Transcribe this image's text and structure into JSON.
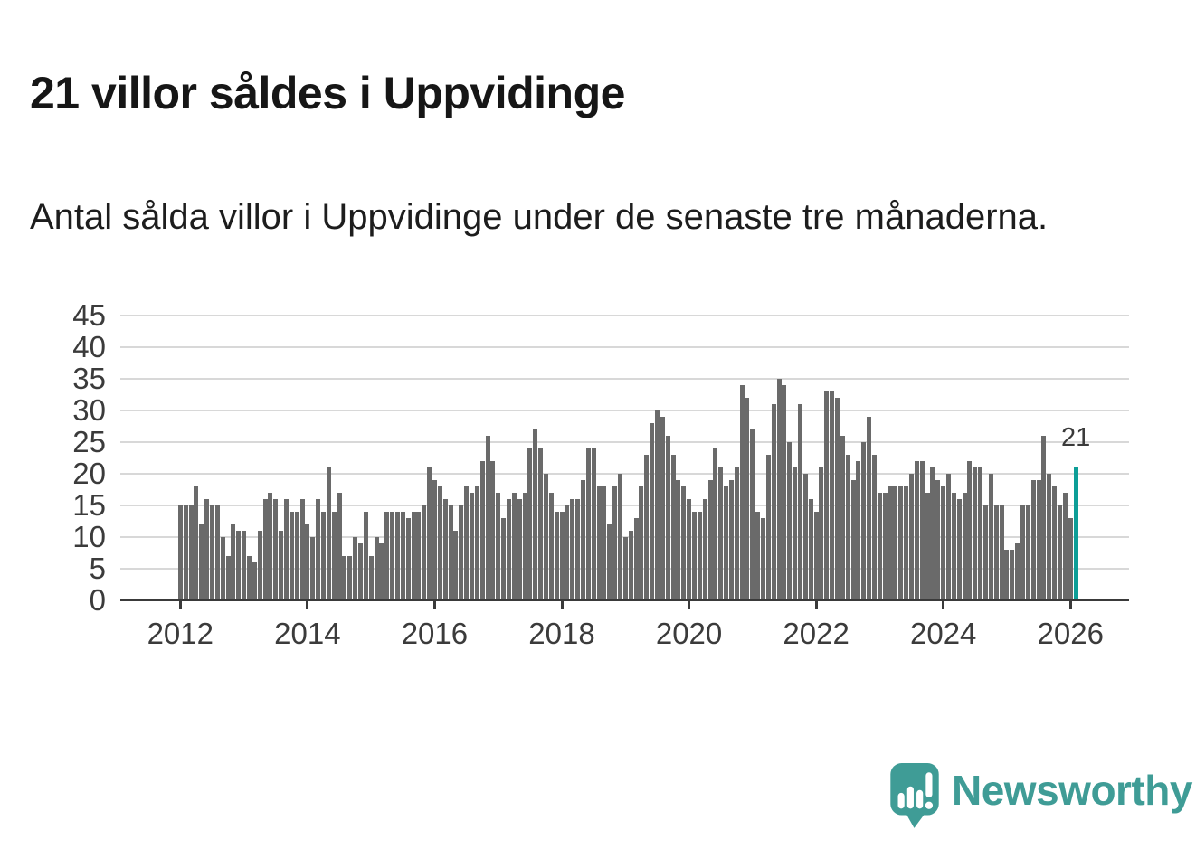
{
  "page": {
    "title": "21 villor såldes i Uppvidinge",
    "subtitle": "Antal sålda villor i Uppvidinge under de senaste tre månaderna."
  },
  "chart_data": {
    "type": "bar",
    "title": "21 villor såldes i Uppvidinge",
    "subtitle": "Antal sålda villor i Uppvidinge under de senaste tre månaderna.",
    "frequency": "monthly",
    "x_start": "2012-01",
    "x_end": "2026-02",
    "values": [
      15,
      15,
      15,
      18,
      12,
      16,
      15,
      15,
      10,
      7,
      12,
      11,
      11,
      7,
      6,
      11,
      16,
      17,
      16,
      11,
      16,
      14,
      14,
      16,
      12,
      10,
      16,
      14,
      21,
      14,
      17,
      7,
      7,
      10,
      9,
      14,
      7,
      10,
      9,
      14,
      14,
      14,
      14,
      13,
      14,
      14,
      15,
      21,
      19,
      18,
      16,
      15,
      11,
      15,
      18,
      17,
      18,
      22,
      26,
      22,
      17,
      13,
      16,
      17,
      16,
      17,
      24,
      27,
      24,
      20,
      17,
      14,
      14,
      15,
      16,
      16,
      19,
      24,
      24,
      18,
      18,
      12,
      18,
      20,
      10,
      11,
      13,
      18,
      23,
      28,
      30,
      29,
      26,
      23,
      19,
      18,
      16,
      14,
      14,
      16,
      19,
      24,
      21,
      18,
      19,
      21,
      34,
      32,
      27,
      14,
      13,
      23,
      31,
      35,
      34,
      25,
      21,
      31,
      20,
      16,
      14,
      21,
      33,
      33,
      32,
      26,
      23,
      19,
      22,
      25,
      29,
      23,
      17,
      17,
      18,
      18,
      18,
      18,
      20,
      22,
      22,
      17,
      21,
      19,
      18,
      20,
      17,
      16,
      17,
      22,
      21,
      21,
      15,
      20,
      15,
      15,
      8,
      8,
      9,
      15,
      15,
      19,
      19,
      26,
      20,
      18,
      15,
      17,
      13,
      21
    ],
    "highlight_last": true,
    "annotation": "21",
    "y_ticks": [
      0,
      5,
      10,
      15,
      20,
      25,
      30,
      35,
      40,
      45
    ],
    "x_ticks": [
      {
        "label": "2012",
        "year": 2012
      },
      {
        "label": "2014",
        "year": 2014
      },
      {
        "label": "2016",
        "year": 2016
      },
      {
        "label": "2018",
        "year": 2018
      },
      {
        "label": "2020",
        "year": 2020
      },
      {
        "label": "2022",
        "year": 2022
      },
      {
        "label": "2024",
        "year": 2024
      },
      {
        "label": "2026",
        "year": 2026
      }
    ],
    "ylim": [
      0,
      45
    ],
    "grid": true,
    "legend": false,
    "colors": {
      "bar": "#6a6a6a",
      "highlight": "#0d9e97",
      "grid": "#d8d8d8",
      "axis": "#3a3a3a",
      "axis_text": "#3b3b3b"
    }
  },
  "footer": {
    "brand": "Newsworthy",
    "logo_icon": "newsworthy-speech-bubble-chart-icon",
    "brand_color": "#3f9c96"
  }
}
